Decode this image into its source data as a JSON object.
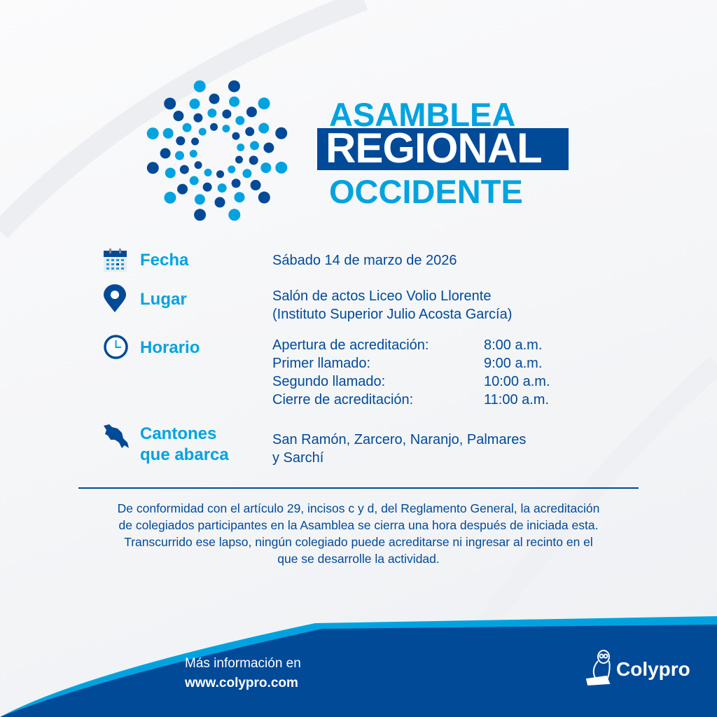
{
  "title": {
    "line1": "ASAMBLEA",
    "line2": "REGIONAL",
    "line3": "OCCIDENTE"
  },
  "colors": {
    "dark_blue": "#004a98",
    "light_blue": "#00a3e0"
  },
  "details": [
    {
      "icon": "calendar-icon",
      "label": "Fecha",
      "lines": [
        "Sábado 14 de marzo de 2026"
      ]
    },
    {
      "icon": "location-pin-icon",
      "label": "Lugar",
      "lines": [
        "Salón de actos Liceo Volio Llorente",
        "(Instituto Superior Julio Acosta García)"
      ]
    },
    {
      "icon": "clock-icon",
      "label": "Horario",
      "schedule": [
        {
          "event": "Apertura de acreditación:",
          "time": "8:00 a.m."
        },
        {
          "event": "Primer llamado:",
          "time": "9:00 a.m."
        },
        {
          "event": "Segundo llamado:",
          "time": "10:00 a.m."
        },
        {
          "event": "Cierre de acreditación:",
          "time": "11:00 a.m."
        }
      ]
    },
    {
      "icon": "costa-rica-map-icon",
      "label_lines": [
        "Cantones",
        "que abarca"
      ],
      "lines": [
        "San Ramón, Zarcero, Naranjo, Palmares",
        "y Sarchí"
      ]
    }
  ],
  "note": [
    "De conformidad con el artículo 29, incisos c y d, del Reglamento General, la acreditación",
    "de colegiados participantes en la Asamblea se cierra una hora después de iniciada esta.",
    "Transcurrido ese lapso, ningún colegiado puede acreditarse ni ingresar al recinto en el",
    "que se desarrolle la actividad."
  ],
  "footer": {
    "info_label": "Más información en",
    "url": "www.colypro.com",
    "brand": "Colypro"
  }
}
